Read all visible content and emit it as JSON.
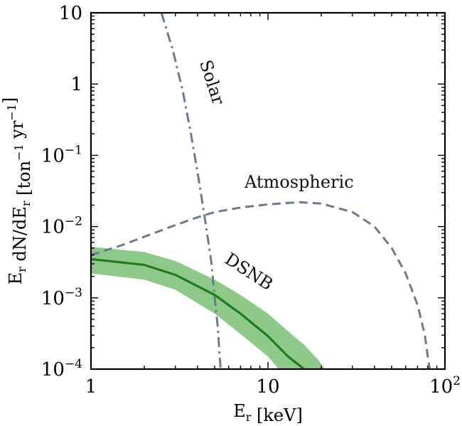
{
  "chart_data": {
    "type": "line",
    "x_scale": "log",
    "y_scale": "log",
    "xlim": [
      1,
      100
    ],
    "ylim": [
      0.0001,
      10
    ],
    "xlabel": "E_r [keV]",
    "ylabel": "E_r dN/dE_r [ton^-1 yr^-1]",
    "x_tick_labels": [
      "1",
      "10",
      "10^2"
    ],
    "y_tick_labels": [
      "10^-4",
      "10^-3",
      "10^-2",
      "10^-1",
      "1",
      "10"
    ],
    "grid": false,
    "series": [
      {
        "name": "Solar",
        "style": "dashdot",
        "color": "#6b7b8c",
        "x": [
          2.5,
          2.9,
          3.3,
          3.7,
          4.1,
          4.5,
          4.8,
          5.0,
          5.2,
          5.4
        ],
        "y": [
          10,
          3.0,
          0.8,
          0.18,
          0.04,
          0.009,
          0.003,
          0.001,
          0.0004,
          0.0001
        ]
      },
      {
        "name": "Atmospheric",
        "style": "dashed",
        "color": "#6b7b8c",
        "x": [
          1,
          1.5,
          2,
          3,
          4,
          5,
          7,
          10,
          15,
          20,
          30,
          40,
          50,
          60,
          70,
          77,
          80,
          82
        ],
        "y": [
          0.004,
          0.0055,
          0.0072,
          0.0105,
          0.0135,
          0.016,
          0.0185,
          0.0205,
          0.022,
          0.021,
          0.016,
          0.01,
          0.005,
          0.0022,
          0.0008,
          0.0003,
          0.00015,
          0.0001
        ]
      },
      {
        "name": "DSNB",
        "style": "solid",
        "color": "#1e7b1e",
        "x": [
          1,
          2,
          3,
          5,
          7,
          10,
          13,
          16
        ],
        "y": [
          0.0035,
          0.0029,
          0.0021,
          0.0011,
          0.0006,
          0.00029,
          0.00015,
          0.0001
        ],
        "band_upper": [
          0.0052,
          0.0044,
          0.0033,
          0.0018,
          0.0011,
          0.0006,
          0.00034,
          0.00022,
          0.00014,
          0.0001
        ],
        "band_upper_x": [
          1,
          2,
          3,
          5,
          7,
          10,
          13,
          16,
          19,
          21
        ],
        "band_lower": [
          0.0022,
          0.0018,
          0.0013,
          0.0006,
          0.00031,
          0.00015,
          0.0001
        ],
        "band_lower_x": [
          1,
          2,
          3,
          5,
          7,
          10,
          11.5
        ],
        "band_color": "#8fc98a"
      }
    ],
    "annotations": [
      {
        "text": "Solar",
        "x": 4.5,
        "y": 1,
        "rotation": 72
      },
      {
        "text": "Atmospheric",
        "x": 15,
        "y": 0.035,
        "rotation": 0
      },
      {
        "text": "DSNB",
        "x": 7.5,
        "y": 0.002,
        "rotation": 33
      }
    ]
  }
}
